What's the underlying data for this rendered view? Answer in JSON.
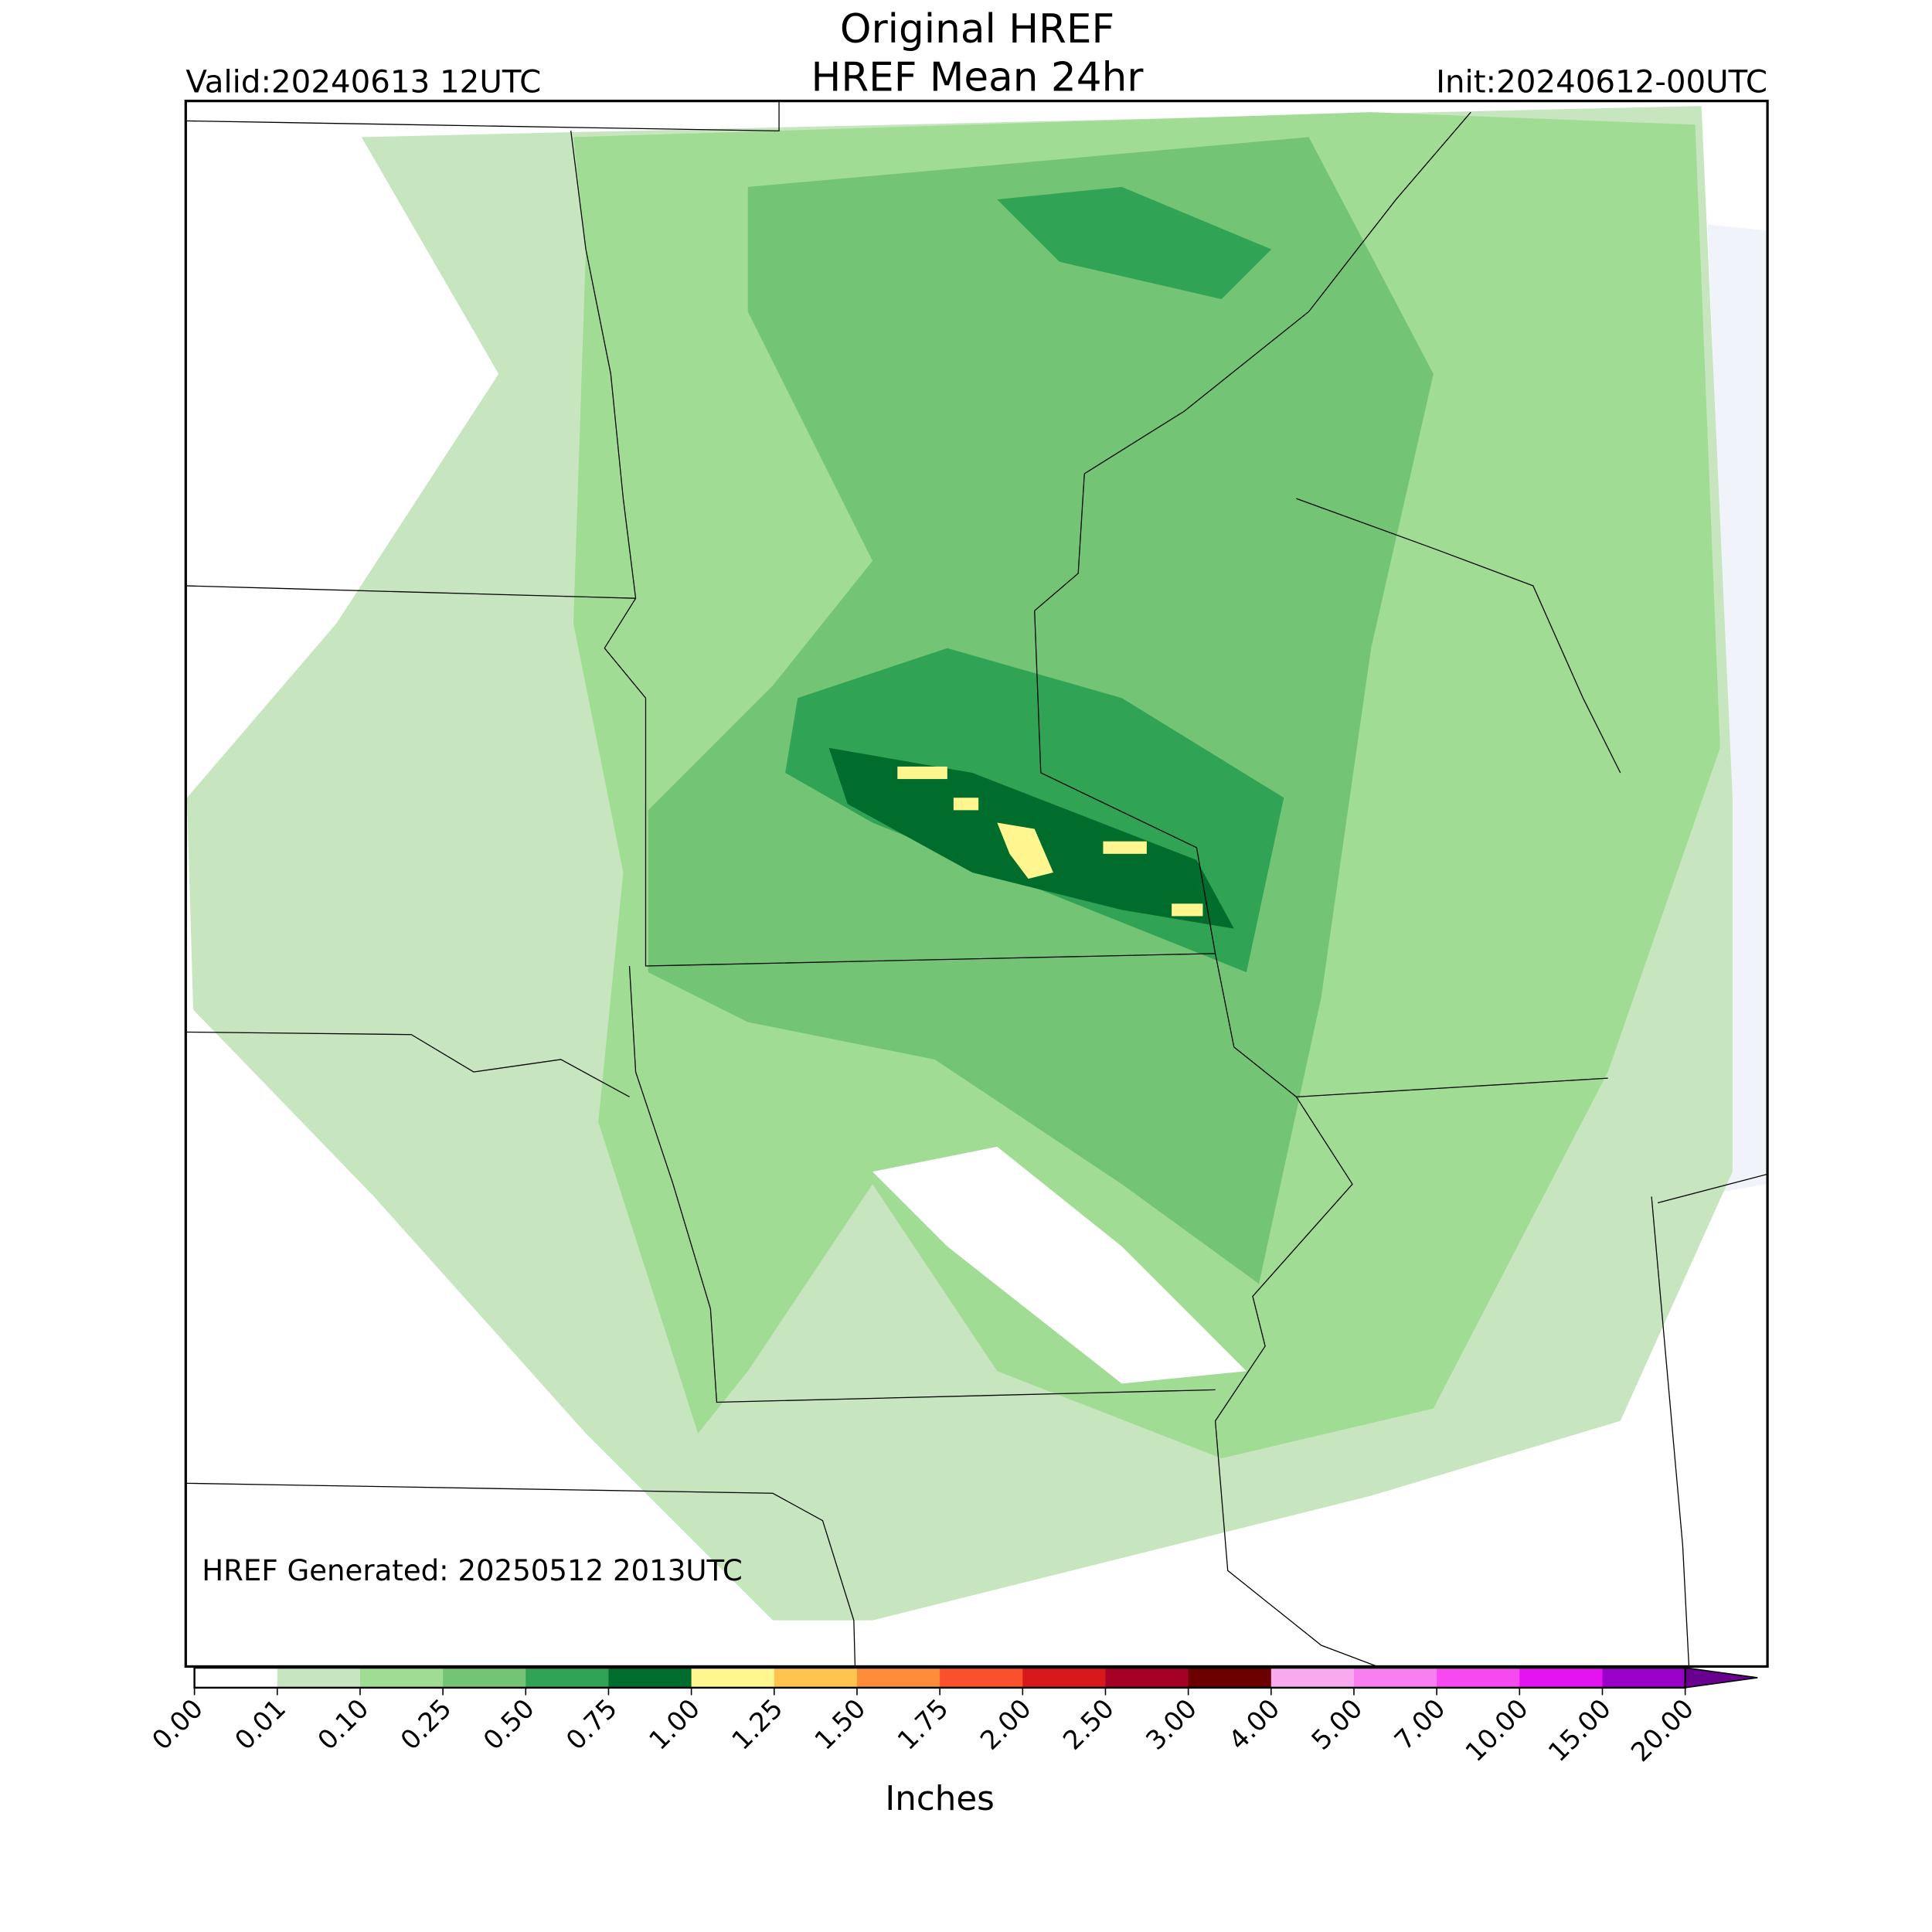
{
  "header": {
    "title": "Original HREF",
    "subtitle": "HREF Mean 24hr",
    "valid": "Valid:20240613 12UTC",
    "init": "Init:20240612-00UTC"
  },
  "map": {
    "note": "HREF Generated: 20250512 2013UTC"
  },
  "colorbar": {
    "label": "Inches",
    "ticks": [
      "0.00",
      "0.01",
      "0.10",
      "0.25",
      "0.50",
      "0.75",
      "1.00",
      "1.25",
      "1.50",
      "1.75",
      "2.00",
      "2.50",
      "3.00",
      "4.00",
      "5.00",
      "7.00",
      "10.00",
      "15.00",
      "20.00"
    ],
    "colors": [
      "#ffffff",
      "#c7e6c0",
      "#a1dc94",
      "#74c476",
      "#31a354",
      "#006d2c",
      "#fff68f",
      "#ffc34f",
      "#ff8c3a",
      "#fb502c",
      "#d7191c",
      "#a50026",
      "#6b0000",
      "#f9a9f0",
      "#f77ff0",
      "#f64af0",
      "#e414f0",
      "#9a00c8"
    ],
    "extend_color": "#6a0090"
  }
}
